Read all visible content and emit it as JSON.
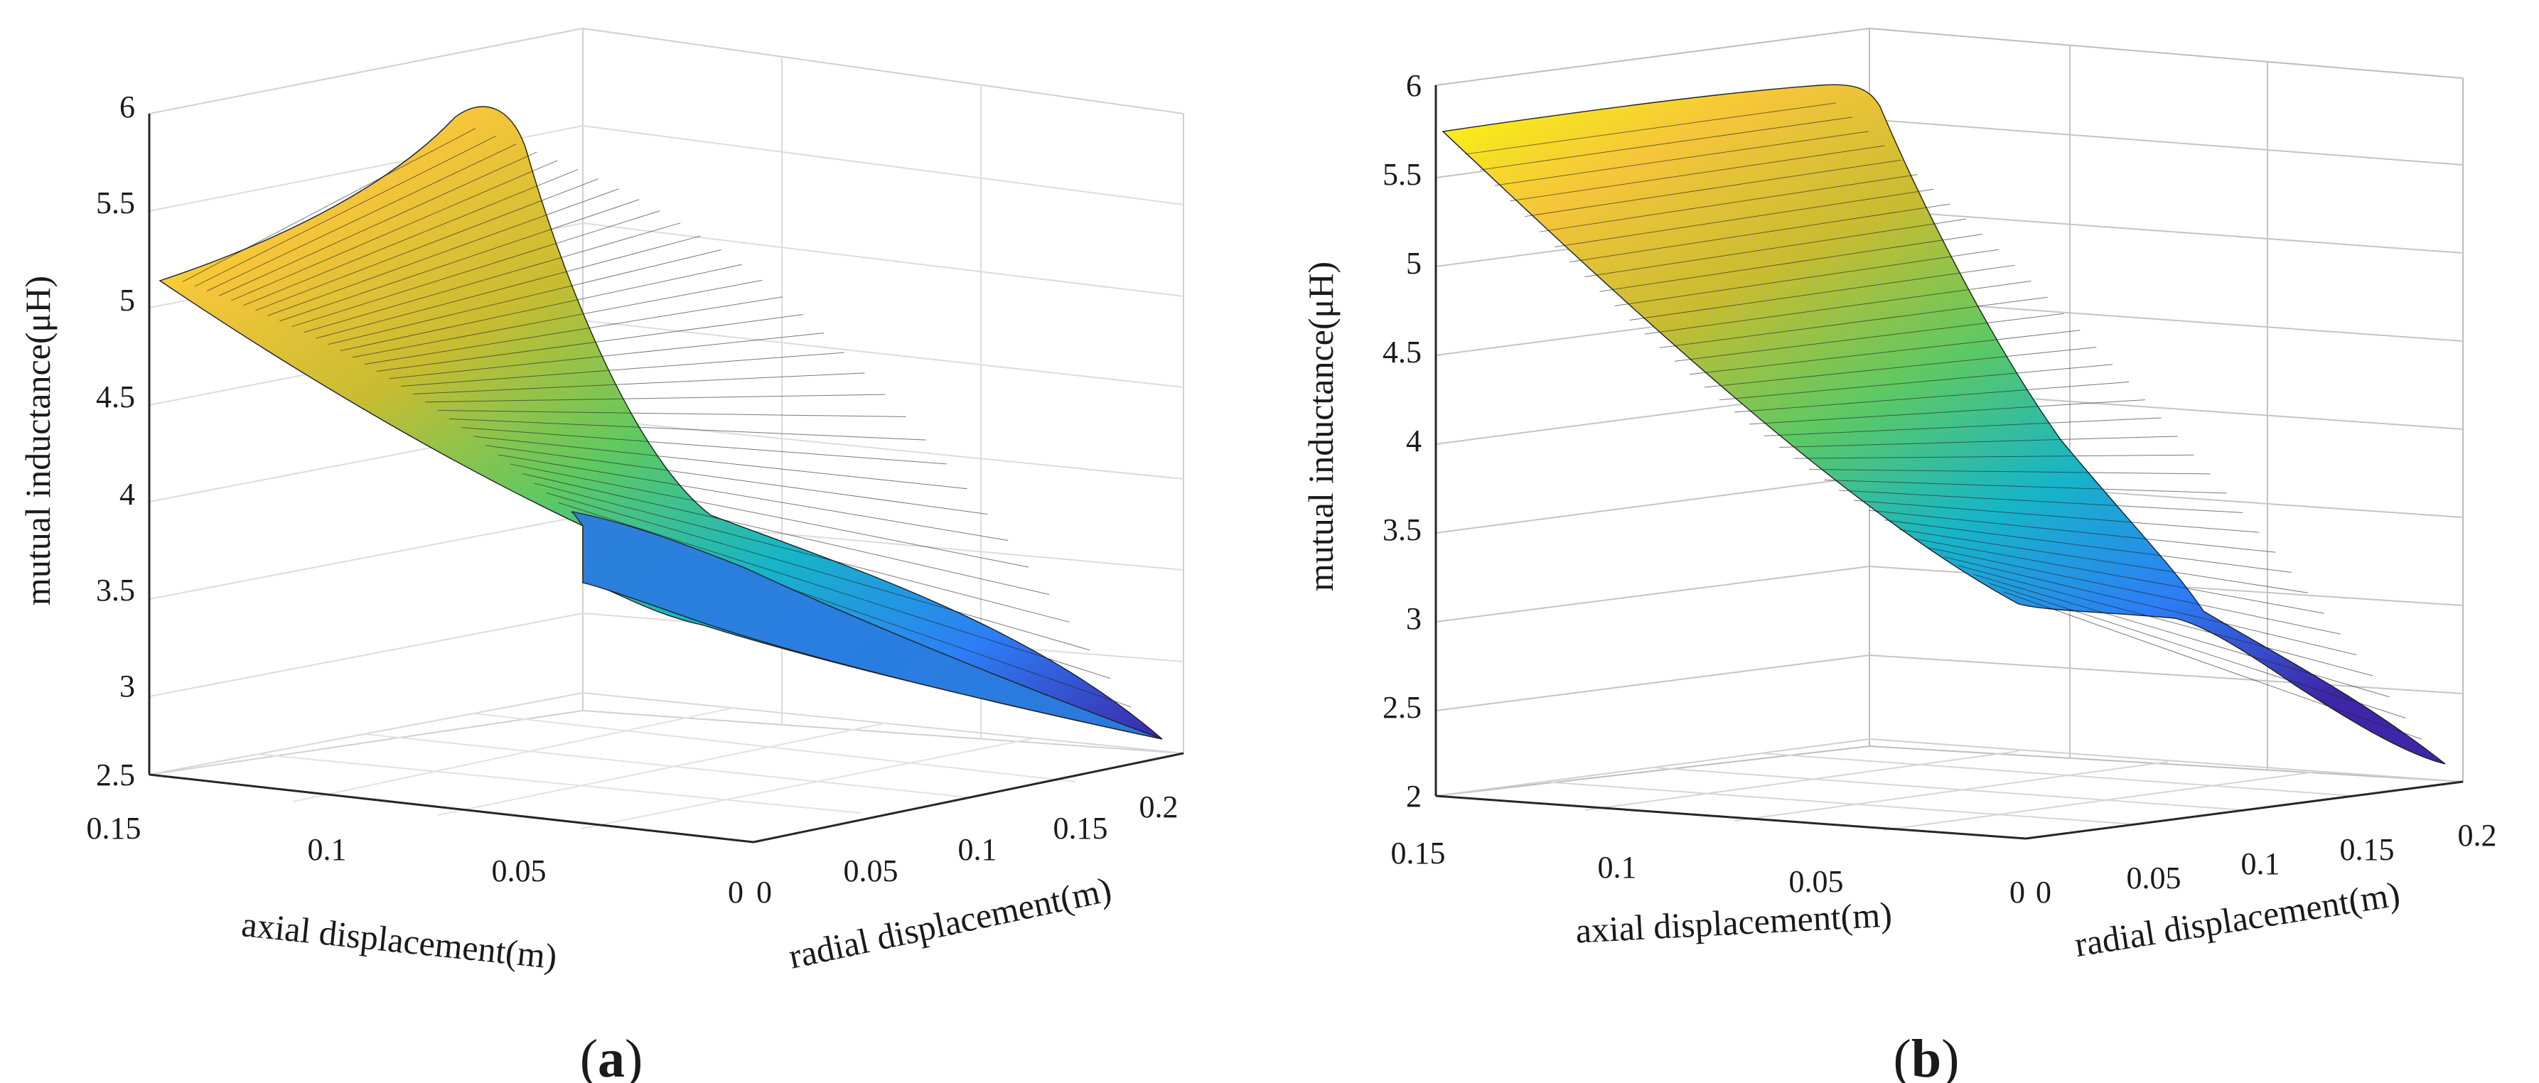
{
  "figure": {
    "panels": [
      {
        "label_open": "(",
        "label_letter": "a",
        "label_close": ")"
      },
      {
        "label_open": "(",
        "label_letter": "b",
        "label_close": ")"
      }
    ]
  },
  "chart_data": [
    {
      "type": "surface",
      "title": "",
      "xlabel": "axial displacement(m)",
      "ylabel": "radial displacement(m)",
      "zlabel": "mutual inductance(μH)",
      "x_ticks": [
        "0.15",
        "0.1",
        "0.05",
        "0"
      ],
      "y_ticks": [
        "0",
        "0.05",
        "0.1",
        "0.15",
        "0.2"
      ],
      "z_ticks": [
        "2.5",
        "3",
        "3.5",
        "4",
        "4.5",
        "5",
        "5.5",
        "6"
      ],
      "xlim": [
        0,
        0.15
      ],
      "ylim": [
        0,
        0.2
      ],
      "zlim": [
        2.5,
        6
      ],
      "colormap": [
        "#3e26a8",
        "#2d7ef6",
        "#17b5c8",
        "#5ec962",
        "#c8bc31",
        "#f5c53a",
        "#f9fb0e"
      ],
      "grid": true,
      "surface_points": [
        {
          "x": 0.15,
          "y": 0.0,
          "z": 5.12
        },
        {
          "x": 0.15,
          "y": 0.1,
          "z": 5.6
        },
        {
          "x": 0.15,
          "y": 0.2,
          "z": 5.95
        },
        {
          "x": 0.1,
          "y": 0.0,
          "z": 4.6
        },
        {
          "x": 0.1,
          "y": 0.2,
          "z": 5.1
        },
        {
          "x": 0.05,
          "y": 0.0,
          "z": 4.0
        },
        {
          "x": 0.05,
          "y": 0.2,
          "z": 4.2
        },
        {
          "x": 0.0,
          "y": 0.0,
          "z": 3.4
        },
        {
          "x": 0.0,
          "y": 0.1,
          "z": 3.05
        },
        {
          "x": 0.0,
          "y": 0.2,
          "z": 2.7
        }
      ]
    },
    {
      "type": "surface",
      "title": "",
      "xlabel": "axial displacement(m)",
      "ylabel": "radial displacement(m)",
      "zlabel": "mutual inductance(μH)",
      "x_ticks": [
        "0.15",
        "0.1",
        "0.05",
        "0"
      ],
      "y_ticks": [
        "0",
        "0.05",
        "0.1",
        "0.15",
        "0.2"
      ],
      "z_ticks": [
        "2",
        "2.5",
        "3",
        "3.5",
        "4",
        "4.5",
        "5",
        "5.5",
        "6"
      ],
      "xlim": [
        0,
        0.15
      ],
      "ylim": [
        0,
        0.2
      ],
      "zlim": [
        2,
        6
      ],
      "colormap": [
        "#3e26a8",
        "#2d7ef6",
        "#17b5c8",
        "#5ec962",
        "#c8bc31",
        "#f5c53a",
        "#f9fb0e"
      ],
      "grid": true,
      "surface_points": [
        {
          "x": 0.15,
          "y": 0.0,
          "z": 5.75
        },
        {
          "x": 0.15,
          "y": 0.2,
          "z": 5.95
        },
        {
          "x": 0.1,
          "y": 0.0,
          "z": 4.5
        },
        {
          "x": 0.1,
          "y": 0.2,
          "z": 5.2
        },
        {
          "x": 0.05,
          "y": 0.0,
          "z": 3.4
        },
        {
          "x": 0.05,
          "y": 0.2,
          "z": 3.6
        },
        {
          "x": 0.0,
          "y": 0.0,
          "z": 3.05
        },
        {
          "x": 0.0,
          "y": 0.1,
          "z": 2.7
        },
        {
          "x": 0.0,
          "y": 0.2,
          "z": 2.2
        }
      ]
    }
  ]
}
